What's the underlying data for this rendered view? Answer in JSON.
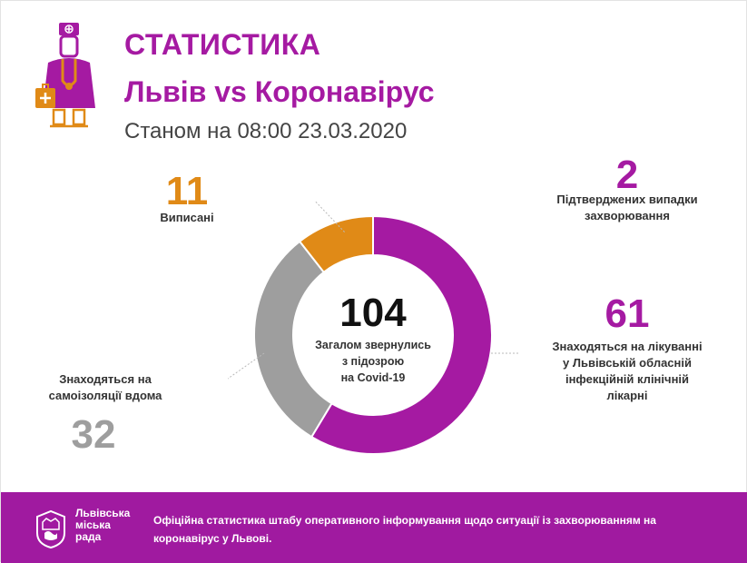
{
  "header": {
    "title": "СТАТИСТИКА",
    "subtitle": "Львів vs Коронавірус",
    "date_line": "Станом на 08:00 23.03.2020"
  },
  "chart_data": {
    "type": "pie",
    "center_value": "104",
    "center_caption": [
      "Загалом звернулись",
      "з підозрою",
      "на Covid-19"
    ],
    "slices": [
      {
        "label": "Знаходяться на лікуванні у Львівській обласній інфекційній клінічній лікарні",
        "value": 61,
        "color": "#a51aa2"
      },
      {
        "label": "Знаходяться на самоізоляції вдома",
        "value": 32,
        "color": "#9e9e9e"
      },
      {
        "label": "Виписані",
        "value": 11,
        "color": "#e08a17"
      }
    ]
  },
  "stats": {
    "discharged": {
      "value": "11",
      "label": "Виписані"
    },
    "confirmed": {
      "value": "2",
      "label_lines": [
        "Підтверджених випадки",
        "захворювання"
      ]
    },
    "hospital": {
      "value": "61",
      "label_lines": [
        "Знаходяться на лікуванні",
        "у Львівській обласній",
        "інфекційній клінічній",
        "лікарні"
      ]
    },
    "home": {
      "value": "32",
      "label_lines": [
        "Знаходяться на",
        "самоізоляції вдома"
      ]
    }
  },
  "footer": {
    "council_lines": [
      "Львівська",
      "міська",
      "рада"
    ],
    "text_lines": [
      "Офіційна статистика штабу оперативного інформування щодо ситуації із захворюванням на",
      "коронавірус у Львові."
    ],
    "background_color": "#a01aa0"
  },
  "colors": {
    "accent": "#a51aa2",
    "orange": "#e08a17",
    "gray": "#9e9e9e"
  },
  "icons": [
    "doctor-icon",
    "coat-of-arms-icon"
  ]
}
